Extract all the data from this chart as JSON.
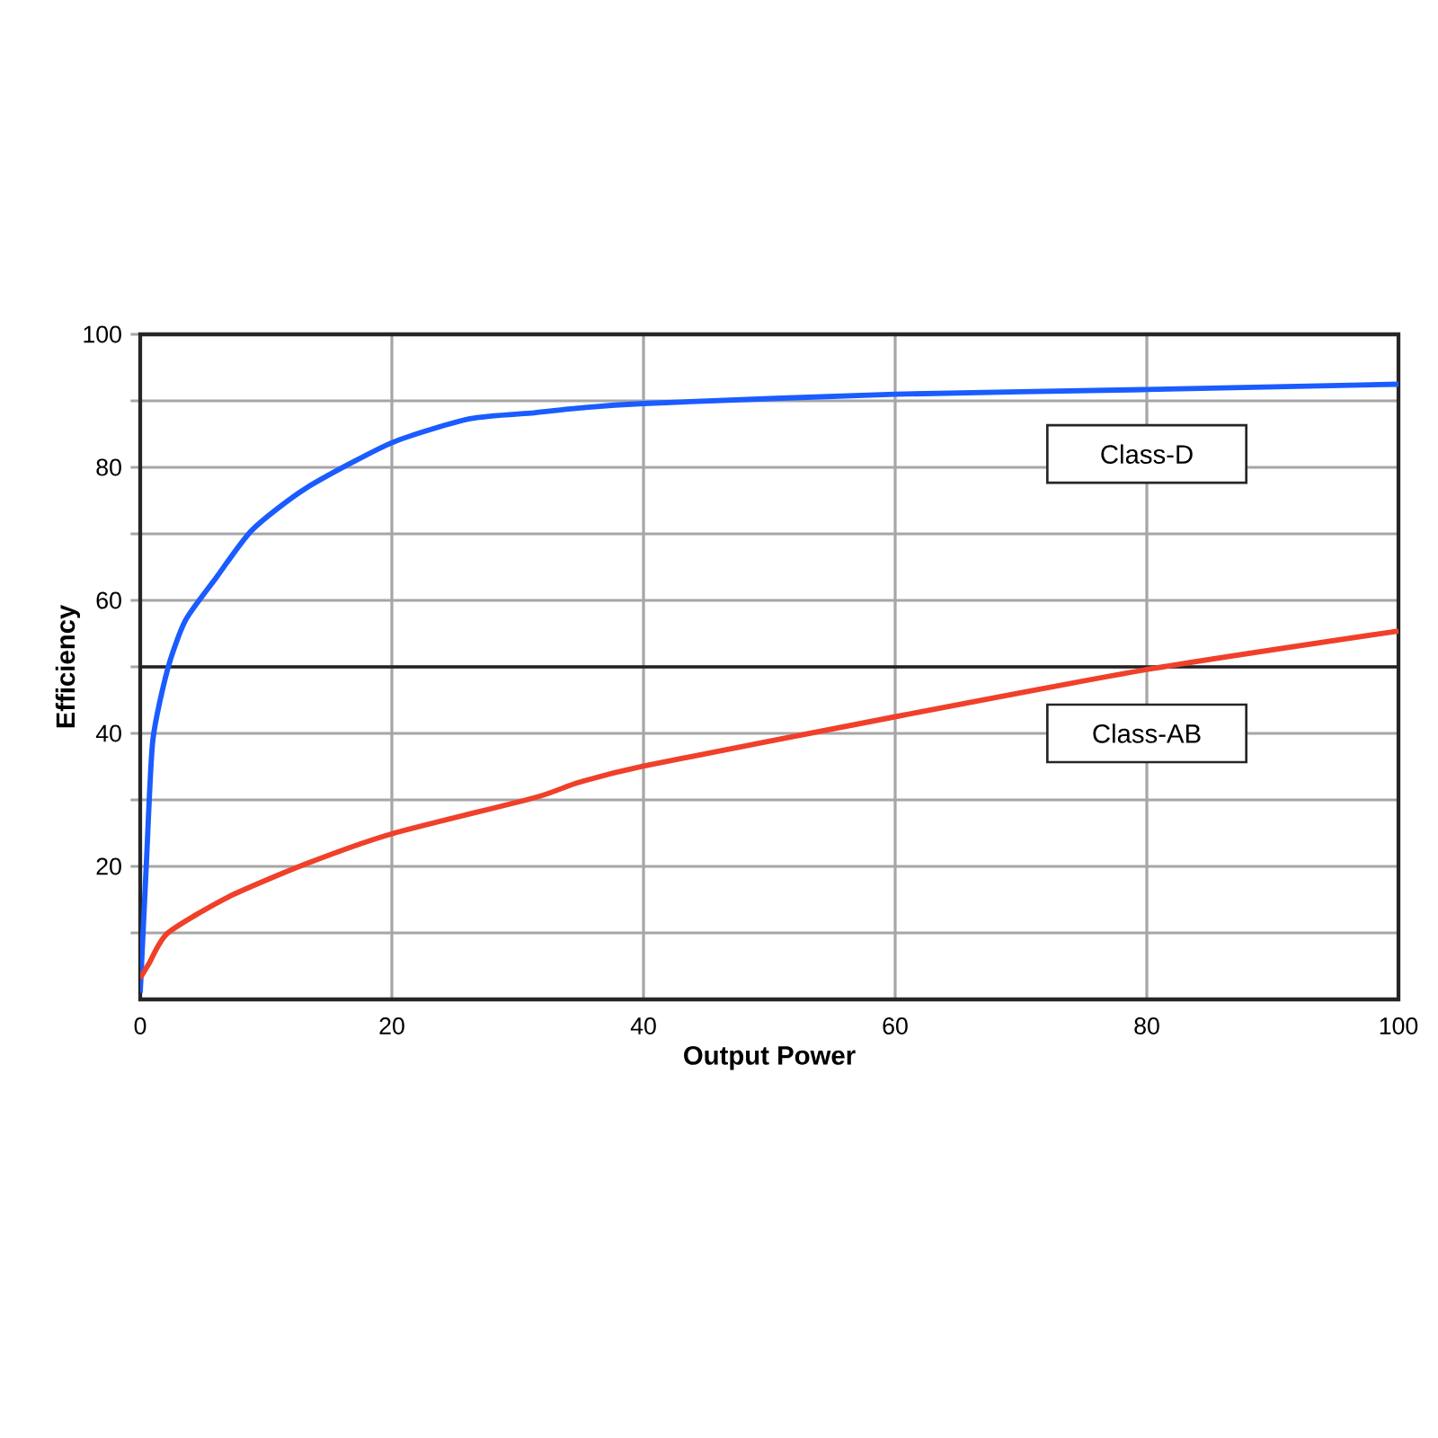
{
  "chart_data": {
    "type": "line",
    "xlabel": "Output Power",
    "ylabel": "Efficiency",
    "xlim": [
      0,
      100
    ],
    "ylim": [
      0,
      100
    ],
    "xticks": [
      0,
      20,
      40,
      60,
      80,
      100
    ],
    "yticks": [
      {
        "value": 10,
        "label": null
      },
      20,
      {
        "value": 30,
        "label": null
      },
      40,
      {
        "value": 50,
        "label": null
      },
      60,
      {
        "value": 70,
        "label": null
      },
      80,
      {
        "value": 90,
        "label": null
      },
      100
    ],
    "grid": true,
    "legend": false,
    "marker": "none",
    "line_style": "solid",
    "ref_lines": [
      {
        "axis": "y",
        "value": 50,
        "color": "#222222"
      }
    ],
    "series": [
      {
        "name": "Class-D",
        "color": "#1a5cff",
        "x": [
          0,
          0.5,
          1.0,
          2.2,
          3.6,
          6,
          8.9,
          13.2,
          20,
          26.2,
          31.3,
          34.8,
          40,
          60,
          80,
          100
        ],
        "values": [
          1,
          20.8,
          38.9,
          49.8,
          57,
          63.3,
          70.6,
          76.9,
          83.7,
          87.3,
          88.2,
          88.9,
          89.6,
          91,
          91.7,
          92.5
        ]
      },
      {
        "name": "Class-AB",
        "color": "#f0402a",
        "x": [
          0,
          0.7,
          2.2,
          7,
          13.2,
          20,
          31.3,
          34.8,
          40,
          60,
          80,
          100
        ],
        "values": [
          3.2,
          5.4,
          10,
          15.4,
          20.4,
          24.9,
          30.3,
          32.6,
          35.1,
          42.5,
          49.6,
          55.4
        ]
      }
    ]
  }
}
